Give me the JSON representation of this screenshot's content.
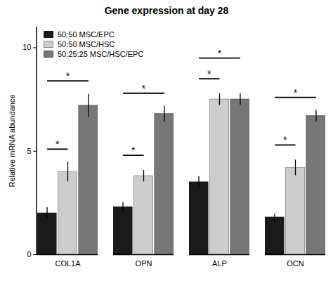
{
  "chart_data": {
    "type": "bar",
    "title": "Gene expression at day 28",
    "ylabel": "Relative mRNA abundance",
    "categories": [
      "COL1A",
      "OPN",
      "ALP",
      "OCN"
    ],
    "series": [
      {
        "name": "50:50 MSC/EPC",
        "color": "#1a1a1a",
        "edgecolor": "#1a1a1a",
        "values": [
          2.0,
          2.3,
          3.5,
          1.8
        ],
        "errors": [
          0.28,
          0.22,
          0.28,
          0.18
        ]
      },
      {
        "name": "50:50 MSC/HSC",
        "color": "#cccccc",
        "edgecolor": "#888888",
        "values": [
          4.0,
          3.8,
          7.5,
          4.2
        ],
        "errors": [
          0.48,
          0.28,
          0.28,
          0.38
        ]
      },
      {
        "name": "50:25:25 MSC/HSC/EPC",
        "color": "#777777",
        "edgecolor": "#555555",
        "values": [
          7.2,
          6.8,
          7.5,
          6.7
        ],
        "errors": [
          0.55,
          0.38,
          0.28,
          0.28
        ]
      }
    ],
    "significance": [
      {
        "category": "COL1A",
        "from": "50:50 MSC/EPC",
        "to": "50:50 MSC/HSC",
        "y": 5.1,
        "label": "*"
      },
      {
        "category": "COL1A",
        "from": "50:50 MSC/EPC",
        "to": "50:25:25 MSC/HSC/EPC",
        "y": 8.4,
        "label": "*"
      },
      {
        "category": "OPN",
        "from": "50:50 MSC/EPC",
        "to": "50:50 MSC/HSC",
        "y": 4.8,
        "label": "*"
      },
      {
        "category": "OPN",
        "from": "50:50 MSC/EPC",
        "to": "50:25:25 MSC/HSC/EPC",
        "y": 7.8,
        "label": "*"
      },
      {
        "category": "ALP",
        "from": "50:50 MSC/EPC",
        "to": "50:50 MSC/HSC",
        "y": 8.5,
        "label": "*"
      },
      {
        "category": "ALP",
        "from": "50:50 MSC/EPC",
        "to": "50:25:25 MSC/HSC/EPC",
        "y": 9.5,
        "label": "*"
      },
      {
        "category": "OCN",
        "from": "50:50 MSC/EPC",
        "to": "50:50 MSC/HSC",
        "y": 5.3,
        "label": "*"
      },
      {
        "category": "OCN",
        "from": "50:50 MSC/EPC",
        "to": "50:25:25 MSC/HSC/EPC",
        "y": 7.6,
        "label": "*"
      }
    ],
    "ylim": [
      0,
      11
    ],
    "yticks": [
      0,
      5,
      10
    ],
    "grid": false,
    "legend": "upper left"
  }
}
